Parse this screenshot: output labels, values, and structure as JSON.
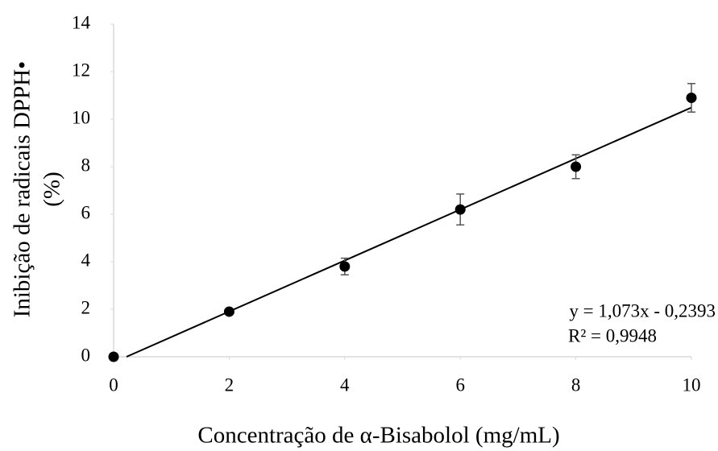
{
  "chart_data": {
    "type": "scatter",
    "x_label": "Concentração de α-Bisabolol (mg/mL)",
    "y_label": [
      "Inibição de radicais DPPH•",
      "(%)"
    ],
    "x": [
      0,
      2,
      4,
      6,
      8,
      10
    ],
    "values": [
      0,
      1.9,
      3.8,
      6.2,
      8.0,
      10.9
    ],
    "errors": [
      0,
      0.05,
      0.35,
      0.65,
      0.5,
      0.6
    ],
    "color": "#000000",
    "xlim": [
      0,
      10
    ],
    "xticks": [
      0,
      2,
      4,
      6,
      8,
      10
    ],
    "ylim": [
      0,
      14
    ],
    "yticks": [
      0,
      2,
      4,
      6,
      8,
      10,
      12,
      14
    ],
    "grid": false,
    "trendline": {
      "slope": 1.073,
      "intercept": -0.2393,
      "equation": "y = 1,073x - 0,2393",
      "r2": "R² = 0,9948"
    }
  }
}
